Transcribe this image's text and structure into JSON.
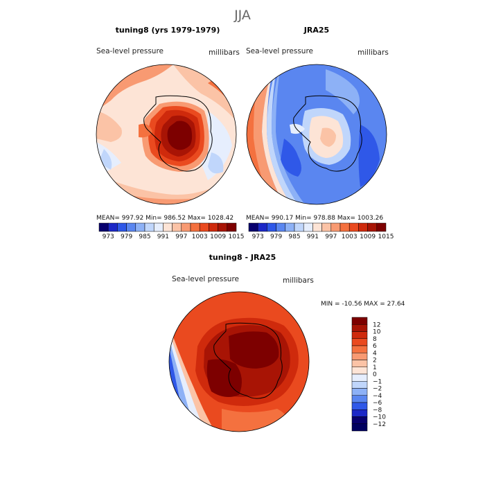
{
  "figure": {
    "title": "JJA"
  },
  "chart_data": [
    {
      "type": "heatmap",
      "projection": "south-polar-stereographic",
      "title": "tuning8 (yrs 1979-1979)",
      "left_label": "Sea-level pressure",
      "right_label": "millibars",
      "stats_text": "MEAN= 997.92   Min= 986.52   Max= 1028.42",
      "stats": {
        "mean": 997.92,
        "min": 986.52,
        "max": 1028.42
      },
      "colorbar_ticks": [
        "973",
        "979",
        "985",
        "991",
        "997",
        "1003",
        "1009",
        "1015"
      ],
      "colorbar_colors": [
        "#08006e",
        "#1c28c7",
        "#2f58e8",
        "#5a86f0",
        "#8db1f6",
        "#c0d6fb",
        "#e6eefd",
        "#fde4d6",
        "#fbc3a6",
        "#f89a72",
        "#f4713f",
        "#ea4a1f",
        "#cf2a0c",
        "#a81405",
        "#7d0000"
      ]
    },
    {
      "type": "heatmap",
      "projection": "south-polar-stereographic",
      "title": "JRA25",
      "left_label": "Sea-level pressure",
      "right_label": "millibars",
      "stats_text": "MEAN= 990.17   Min= 978.88   Max= 1003.26",
      "stats": {
        "mean": 990.17,
        "min": 978.88,
        "max": 1003.26
      },
      "colorbar_ticks": [
        "973",
        "979",
        "985",
        "991",
        "997",
        "1003",
        "1009",
        "1015"
      ],
      "colorbar_colors": [
        "#08006e",
        "#1c28c7",
        "#2f58e8",
        "#5a86f0",
        "#8db1f6",
        "#c0d6fb",
        "#e6eefd",
        "#fde4d6",
        "#fbc3a6",
        "#f89a72",
        "#f4713f",
        "#ea4a1f",
        "#cf2a0c",
        "#a81405",
        "#7d0000"
      ]
    },
    {
      "type": "heatmap",
      "projection": "south-polar-stereographic",
      "title": "tuning8 - JRA25",
      "left_label": "Sea-level pressure",
      "right_label": "millibars",
      "stats_text": "MIN = -10.56 MAX =  27.64",
      "stats": {
        "min": -10.56,
        "max": 27.64
      },
      "colorbar_ticks": [
        "12",
        "10",
        "8",
        "6",
        "4",
        "2",
        "1",
        "0",
        "−1",
        "−2",
        "−4",
        "−6",
        "−8",
        "−10",
        "−12"
      ],
      "colorbar_colors": [
        "#7d0000",
        "#a81405",
        "#cf2a0c",
        "#ea4a1f",
        "#f4713f",
        "#f89a72",
        "#fbc3a6",
        "#fde4d6",
        "#e6eefd",
        "#c0d6fb",
        "#8db1f6",
        "#5a86f0",
        "#2f58e8",
        "#1c28c7",
        "#08006e",
        "#000060"
      ]
    }
  ]
}
